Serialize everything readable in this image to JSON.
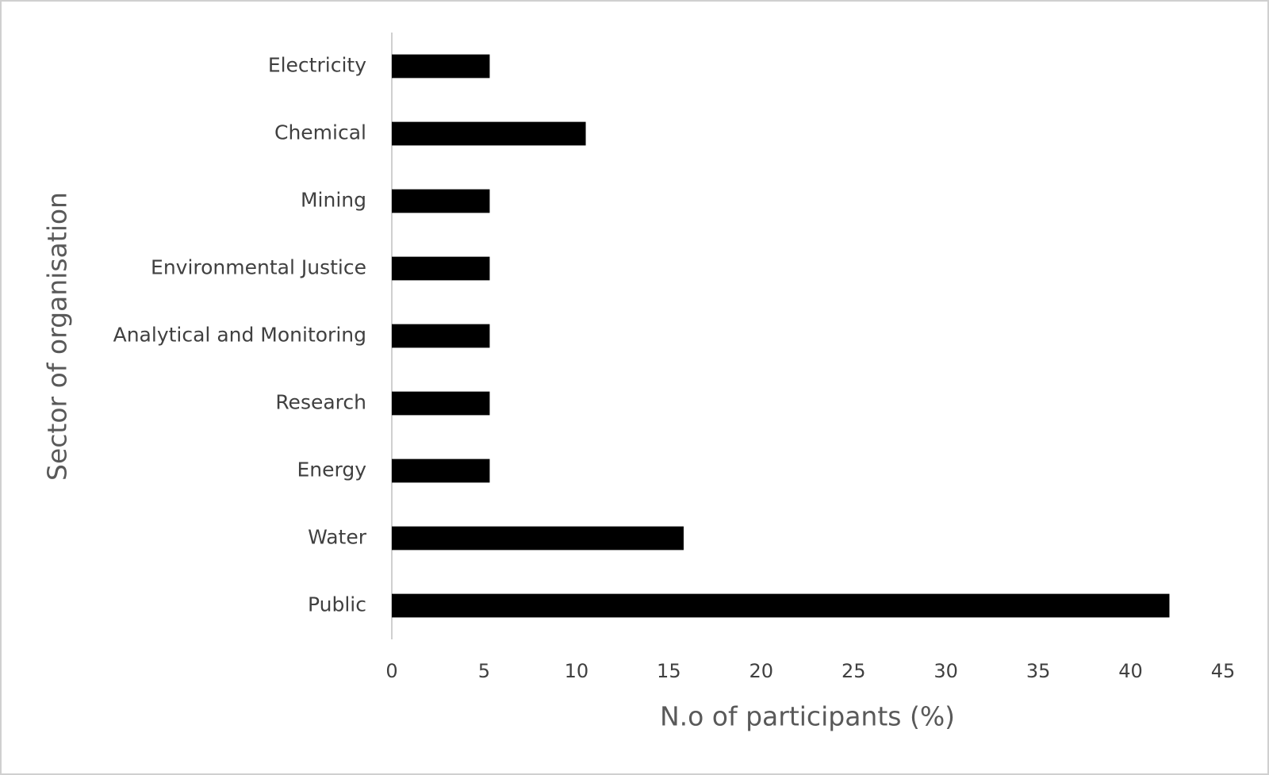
{
  "chart_data": {
    "type": "hbar",
    "x_label": "N.o of participants (%)",
    "y_label": "Sector of organisation",
    "categories": [
      "Electricity",
      "Chemical",
      "Mining",
      "Environmental Justice",
      "Analytical and Monitoring",
      "Research",
      "Energy",
      "Water",
      "Public"
    ],
    "values": [
      5.3,
      10.5,
      5.3,
      5.3,
      5.3,
      5.3,
      5.3,
      15.8,
      42.1
    ],
    "color": "#000000",
    "xlim": [
      0,
      45
    ],
    "xticks": [
      0,
      5,
      10,
      15,
      20,
      25,
      30,
      35,
      40,
      45
    ],
    "grid": false
  }
}
